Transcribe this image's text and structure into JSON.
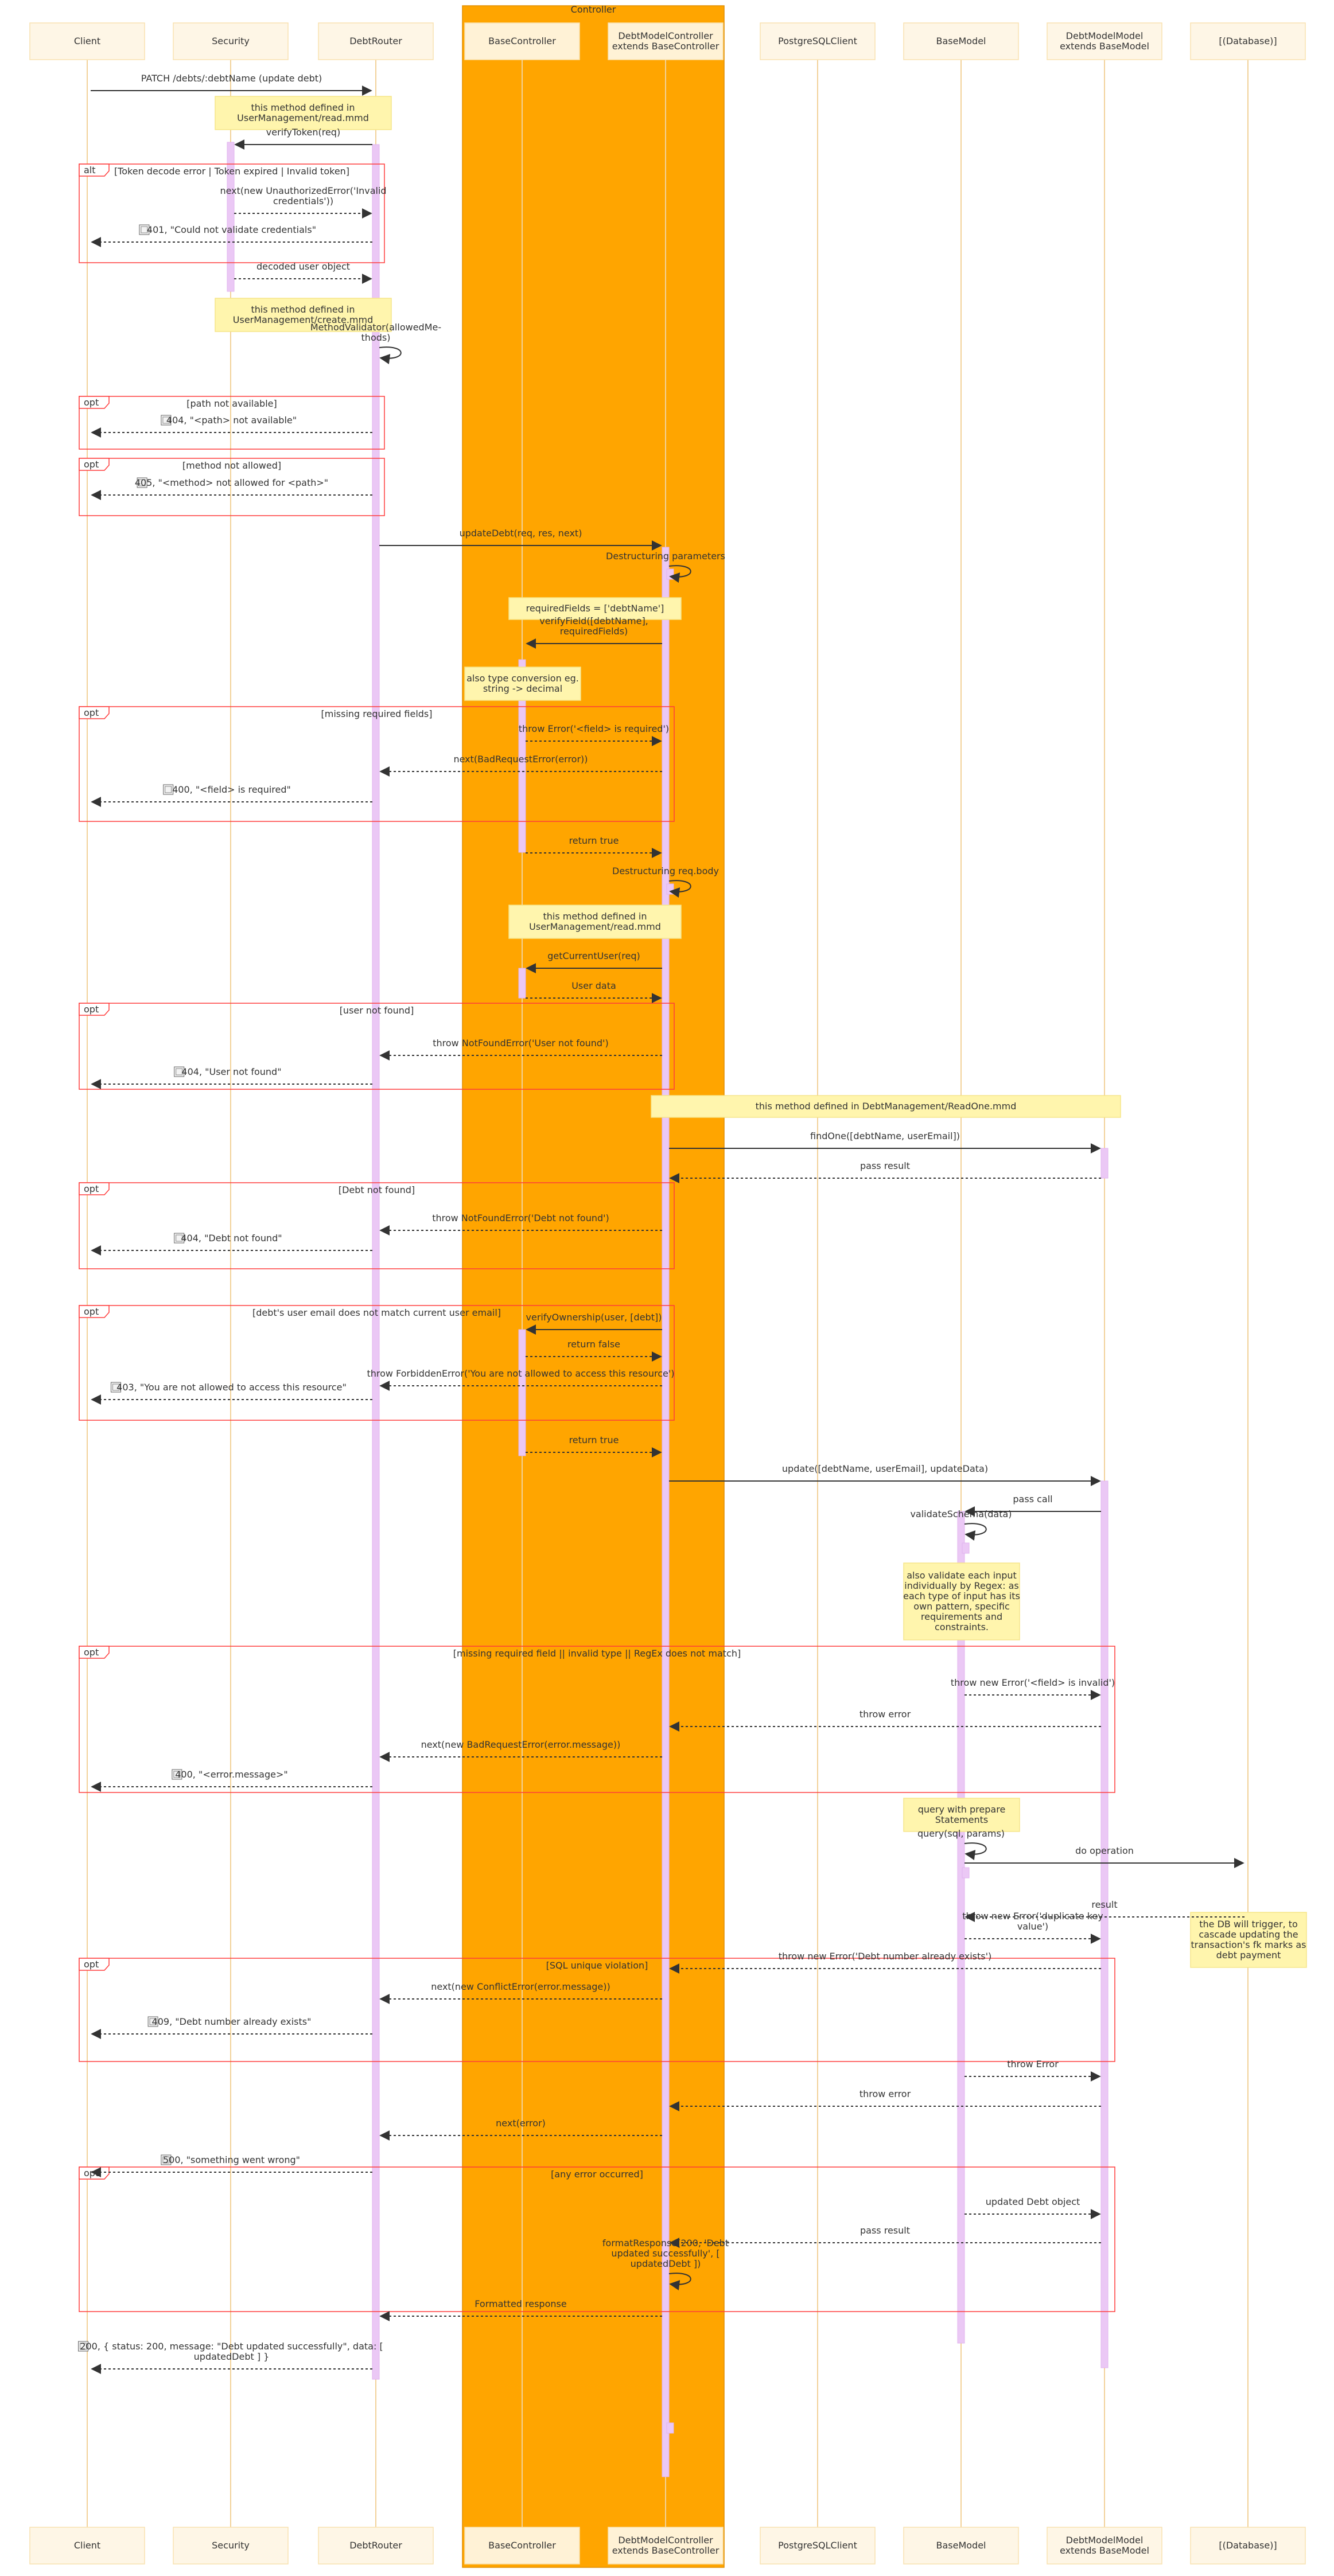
{
  "group": {
    "label": "Controller"
  },
  "participants": [
    {
      "id": "client",
      "label": [
        "Client"
      ]
    },
    {
      "id": "security",
      "label": [
        "Security"
      ]
    },
    {
      "id": "router",
      "label": [
        "DebtRouter"
      ]
    },
    {
      "id": "basectrl",
      "label": [
        "BaseController"
      ]
    },
    {
      "id": "debtctrl",
      "label": [
        "DebtModelController",
        "extends BaseController"
      ]
    },
    {
      "id": "pg",
      "label": [
        "PostgreSQLClient"
      ]
    },
    {
      "id": "basemodel",
      "label": [
        "BaseModel"
      ]
    },
    {
      "id": "debtmodel",
      "label": [
        "DebtModelModel",
        "extends BaseModel"
      ]
    },
    {
      "id": "db",
      "label": [
        "[(Database)]"
      ]
    }
  ],
  "messages": [
    {
      "from": "client",
      "to": "router",
      "text": [
        "PATCH /debts/:debtName (update debt)"
      ],
      "dashed": false
    },
    {
      "from": "router",
      "to": "security",
      "text": [
        "verifyToken(req)"
      ],
      "dashed": false
    },
    {
      "from": "security",
      "to": "router",
      "text": [
        "next(new UnauthorizedError('Invalid",
        "credentials'))"
      ],
      "dashed": true
    },
    {
      "from": "router",
      "to": "client",
      "text": [
        "401, \"Could not validate credentials\""
      ],
      "dashed": true,
      "icon": true
    },
    {
      "from": "security",
      "to": "router",
      "text": [
        "decoded user object"
      ],
      "dashed": true
    },
    {
      "from": "router",
      "to": "router",
      "text": [
        "MethodValidator(allowedMe-",
        "thods)"
      ],
      "self": true
    },
    {
      "from": "router",
      "to": "client",
      "text": [
        "404, \"<path> not available\""
      ],
      "dashed": true,
      "icon": true
    },
    {
      "from": "router",
      "to": "client",
      "text": [
        "405, \"<method> not allowed for <path>\""
      ],
      "dashed": true,
      "icon": true
    },
    {
      "from": "router",
      "to": "debtctrl",
      "text": [
        "updateDebt(req, res, next)"
      ],
      "dashed": false
    },
    {
      "from": "debtctrl",
      "to": "debtctrl",
      "text": [
        "Destructuring parameters"
      ],
      "self": true
    },
    {
      "from": "debtctrl",
      "to": "basectrl",
      "text": [
        "verifyField([debtName],",
        "requiredFields)"
      ],
      "dashed": false
    },
    {
      "from": "basectrl",
      "to": "debtctrl",
      "text": [
        "throw Error('<field> is required')"
      ],
      "dashed": true
    },
    {
      "from": "debtctrl",
      "to": "router",
      "text": [
        "next(BadRequestError(error))"
      ],
      "dashed": true
    },
    {
      "from": "router",
      "to": "client",
      "text": [
        "400, \"<field> is required\""
      ],
      "dashed": true,
      "icon": true
    },
    {
      "from": "basectrl",
      "to": "debtctrl",
      "text": [
        "return true"
      ],
      "dashed": true
    },
    {
      "from": "debtctrl",
      "to": "debtctrl",
      "text": [
        "Destructuring req.body"
      ],
      "self": true
    },
    {
      "from": "debtctrl",
      "to": "basectrl",
      "text": [
        "getCurrentUser(req)"
      ],
      "dashed": false
    },
    {
      "from": "basectrl",
      "to": "debtctrl",
      "text": [
        "User data"
      ],
      "dashed": true
    },
    {
      "from": "debtctrl",
      "to": "router",
      "text": [
        "throw NotFoundError('User not found')"
      ],
      "dashed": true
    },
    {
      "from": "router",
      "to": "client",
      "text": [
        "404, \"User not found\""
      ],
      "dashed": true,
      "icon": true
    },
    {
      "from": "debtctrl",
      "to": "debtmodel",
      "text": [
        "findOne([debtName, userEmail])"
      ],
      "dashed": false
    },
    {
      "from": "debtmodel",
      "to": "debtctrl",
      "text": [
        "pass result"
      ],
      "dashed": true
    },
    {
      "from": "debtctrl",
      "to": "router",
      "text": [
        "throw NotFoundError('Debt not found')"
      ],
      "dashed": true
    },
    {
      "from": "router",
      "to": "client",
      "text": [
        "404, \"Debt not found\""
      ],
      "dashed": true,
      "icon": true
    },
    {
      "from": "debtctrl",
      "to": "basectrl",
      "text": [
        "verifyOwnership(user, [debt])"
      ],
      "dashed": false
    },
    {
      "from": "basectrl",
      "to": "debtctrl",
      "text": [
        "return false"
      ],
      "dashed": true
    },
    {
      "from": "debtctrl",
      "to": "router",
      "text": [
        "throw ForbiddenError('You are not allowed to access this resource')"
      ],
      "dashed": true
    },
    {
      "from": "router",
      "to": "client",
      "text": [
        "403, \"You are not allowed to access this resource\""
      ],
      "dashed": true,
      "icon": true
    },
    {
      "from": "basectrl",
      "to": "debtctrl",
      "text": [
        "return true"
      ],
      "dashed": true
    },
    {
      "from": "debtctrl",
      "to": "debtmodel",
      "text": [
        "update([debtName, userEmail], updateData)"
      ],
      "dashed": false
    },
    {
      "from": "debtmodel",
      "to": "basemodel",
      "text": [
        "pass call"
      ],
      "dashed": false
    },
    {
      "from": "basemodel",
      "to": "basemodel",
      "text": [
        "validateSchema(data)"
      ],
      "self": true
    },
    {
      "from": "basemodel",
      "to": "debtmodel",
      "text": [
        "throw new Error('<field> is invalid')"
      ],
      "dashed": true
    },
    {
      "from": "debtmodel",
      "to": "debtctrl",
      "text": [
        "throw error"
      ],
      "dashed": true
    },
    {
      "from": "debtctrl",
      "to": "router",
      "text": [
        "next(new BadRequestError(error.message))"
      ],
      "dashed": true
    },
    {
      "from": "router",
      "to": "client",
      "text": [
        "400, \"<error.message>\""
      ],
      "dashed": true,
      "icon": true
    },
    {
      "from": "basemodel",
      "to": "basemodel",
      "text": [
        "query(sql, params)"
      ],
      "self": true
    },
    {
      "from": "basemodel",
      "to": "db",
      "text": [
        "do operation"
      ],
      "dashed": false
    },
    {
      "from": "db",
      "to": "basemodel",
      "text": [
        "result"
      ],
      "dashed": true
    },
    {
      "from": "basemodel",
      "to": "debtmodel",
      "text": [
        "throw new Error('duplicate key",
        "value')"
      ],
      "dashed": true
    },
    {
      "from": "debtmodel",
      "to": "debtctrl",
      "text": [
        "throw new Error('Debt number already exists')"
      ],
      "dashed": true
    },
    {
      "from": "debtctrl",
      "to": "router",
      "text": [
        "next(new ConflictError(error.message))"
      ],
      "dashed": true
    },
    {
      "from": "router",
      "to": "client",
      "text": [
        "409, \"Debt number already exists\""
      ],
      "dashed": true,
      "icon": true
    },
    {
      "from": "basemodel",
      "to": "debtmodel",
      "text": [
        "throw Error"
      ],
      "dashed": true
    },
    {
      "from": "debtmodel",
      "to": "debtctrl",
      "text": [
        "throw error"
      ],
      "dashed": true
    },
    {
      "from": "debtctrl",
      "to": "router",
      "text": [
        "next(error)"
      ],
      "dashed": true
    },
    {
      "from": "router",
      "to": "client",
      "text": [
        "500, \"something went wrong\""
      ],
      "dashed": true,
      "icon": true
    },
    {
      "from": "basemodel",
      "to": "debtmodel",
      "text": [
        "updated Debt object"
      ],
      "dashed": true
    },
    {
      "from": "debtmodel",
      "to": "debtctrl",
      "text": [
        "pass result"
      ],
      "dashed": true
    },
    {
      "from": "debtctrl",
      "to": "debtctrl",
      "text": [
        "formatResponse(200, 'Debt",
        "updated successfully', [",
        "updatedDebt ])"
      ],
      "self": true
    },
    {
      "from": "debtctrl",
      "to": "router",
      "text": [
        "Formatted response"
      ],
      "dashed": true
    },
    {
      "from": "router",
      "to": "client",
      "text": [
        "200, { status: 200, message: \"Debt updated successfully\", data: [",
        "updatedDebt ] }"
      ],
      "dashed": true,
      "icon": true
    }
  ],
  "notes": [
    {
      "text": [
        "this method defined in",
        "UserManagement/read.mmd"
      ]
    },
    {
      "text": [
        "this method defined in",
        "UserManagement/create.mmd"
      ]
    },
    {
      "text": [
        "requiredFields = ['debtName']"
      ]
    },
    {
      "text": [
        "also type conversion eg.",
        "string -> decimal"
      ]
    },
    {
      "text": [
        "this method defined in",
        "UserManagement/read.mmd"
      ]
    },
    {
      "text": [
        "this method defined in DebtManagement/ReadOne.mmd"
      ]
    },
    {
      "text": [
        "also validate each input",
        "individually by Regex: as",
        "each type of input has its",
        "own pattern, specific",
        "requirements and",
        "constraints."
      ]
    },
    {
      "text": [
        "query with prepare",
        "Statements"
      ]
    },
    {
      "text": [
        "the DB will trigger, to",
        "cascade updating the",
        "transaction's fk marks as",
        "debt payment"
      ]
    }
  ],
  "frames": [
    {
      "op": "alt",
      "cond": "[Token decode error  |  Token expired  |  Invalid token]"
    },
    {
      "op": "opt",
      "cond": "[path not available]"
    },
    {
      "op": "opt",
      "cond": "[method not allowed]"
    },
    {
      "op": "opt",
      "cond": "[missing required fields]"
    },
    {
      "op": "opt",
      "cond": "[user not found]"
    },
    {
      "op": "opt",
      "cond": "[Debt not found]"
    },
    {
      "op": "opt",
      "cond": "[debt's user email does not match current user email]"
    },
    {
      "op": "opt",
      "cond": "[missing required field  ||  invalid type  ||  RegEx does not match]"
    },
    {
      "op": "opt",
      "cond": "[SQL unique violation]"
    },
    {
      "op": "opt",
      "cond": "[any error occurred]"
    }
  ]
}
